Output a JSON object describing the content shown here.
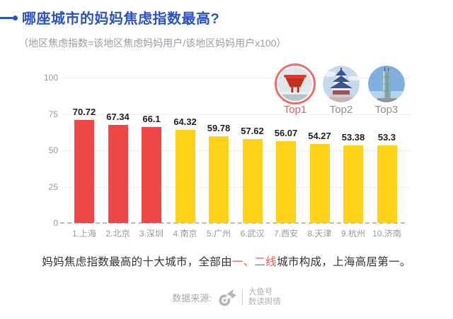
{
  "header": {
    "title": "哪座城市的妈妈焦虑指数最高?",
    "subtitle": "（地区焦虑指数=该地区焦虑妈妈用户/该地区妈妈用户x100）"
  },
  "chart_data": {
    "type": "bar",
    "title": "妈妈焦虑指数最高的十大城市",
    "categories": [
      "1.上海",
      "2.北京",
      "3.深圳",
      "4.南京",
      "5.广州",
      "6.武汉",
      "7.西安",
      "8.天津",
      "9.杭州",
      "10.济南"
    ],
    "values": [
      70.72,
      67.34,
      66.1,
      64.32,
      59.78,
      57.62,
      56.07,
      54.27,
      53.38,
      53.3
    ],
    "y_ticks": [
      0,
      25,
      50,
      75,
      100
    ],
    "ylim": [
      0,
      100
    ],
    "grid": true,
    "legend": "none",
    "top3_bar_color": "#ef4646",
    "other_bar_color": "#ffd117"
  },
  "top_badges": [
    {
      "label": "Top1",
      "icon": "shanghai-china-pavilion-icon",
      "label_color": "#f15b5b",
      "ring_color": "#f26b6b"
    },
    {
      "label": "Top2",
      "icon": "beijing-temple-of-heaven-icon",
      "label_color": "#909090"
    },
    {
      "label": "Top3",
      "icon": "shenzhen-skyscraper-icon",
      "label_color": "#909090"
    }
  ],
  "summary": {
    "prefix": "妈妈焦虑指数最高的十大城市，全部由",
    "highlight": "一、二线",
    "suffix": "城市构成，上海高居第一。",
    "highlight_color": "#f15353"
  },
  "footer": {
    "source_label": "数据来源:",
    "logo": "uc-squirrel-logo-icon",
    "brand_line1": "大鱼号",
    "brand_line2": "数读舆情"
  },
  "colors": {
    "accent_blue": "#2b52c1",
    "subtitle_gray": "#9c9c9c",
    "axis_gray": "#999999",
    "grid_gray": "#ececec",
    "baseline_gray": "#b9b9b9",
    "summary_text": "#333333"
  }
}
